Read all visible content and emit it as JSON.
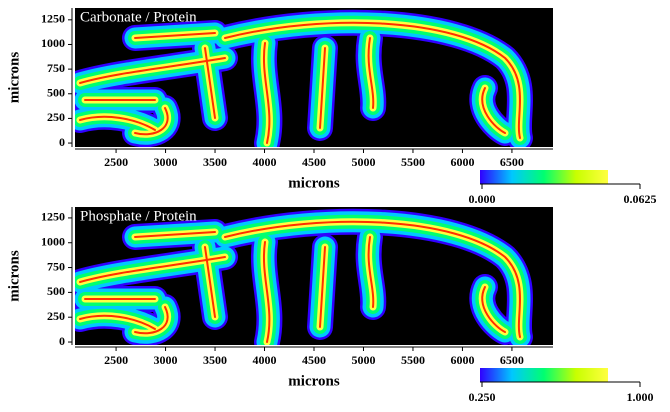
{
  "chart_data": [
    {
      "type": "heatmap",
      "title": "Carbonate / Protein",
      "xlabel": "microns",
      "ylabel": "microns",
      "xlim": [
        2085,
        6915
      ],
      "ylim": [
        -40,
        1370
      ],
      "xticks": [
        2500,
        3000,
        3500,
        4000,
        4500,
        5000,
        5500,
        6000,
        6500
      ],
      "yticks": [
        0,
        250,
        500,
        750,
        1000,
        1250
      ],
      "colormap": [
        "#3000ff",
        "#00c8ff",
        "#00ff70",
        "#c8ff00",
        "#ffff40"
      ],
      "clim": [
        0,
        0.0625
      ],
      "cticks": [
        {
          "value": 0,
          "label": "0.000"
        },
        0.0625
      ]
    },
    {
      "type": "heatmap",
      "title": "Phosphate / Protein",
      "xlabel": "microns",
      "ylabel": "microns",
      "xlim": [
        2085,
        6915
      ],
      "ylim": [
        -30,
        1360
      ],
      "xticks": [
        2500,
        3000,
        3500,
        4000,
        4500,
        5000,
        5500,
        6000,
        6500
      ],
      "yticks": [
        0,
        250,
        500,
        750,
        1000,
        1250
      ],
      "colormap": [
        "#3000ff",
        "#00c8ff",
        "#00ff70",
        "#c8ff00",
        "#ffff40"
      ],
      "clim": [
        0.25,
        1
      ],
      "cticks": [
        {
          "value": 0.25,
          "label": "0.250"
        },
        {
          "value": 1,
          "label": "1.000"
        }
      ]
    }
  ]
}
